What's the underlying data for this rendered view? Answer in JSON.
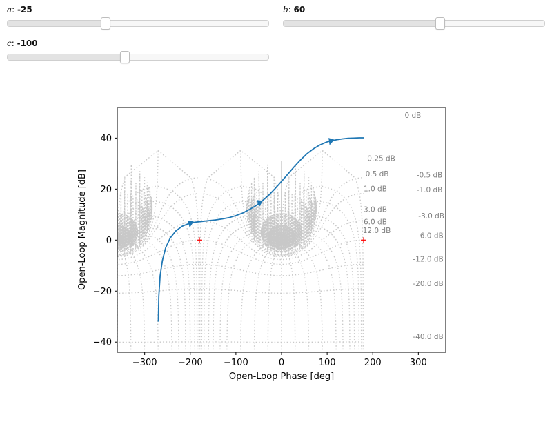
{
  "controls": {
    "sliders": [
      {
        "id": "a",
        "name": "a",
        "value": -25,
        "display": "-25",
        "fraction": 0.375
      },
      {
        "id": "b",
        "name": "b",
        "value": 60,
        "display": "60",
        "fraction": 0.6
      },
      {
        "id": "c",
        "name": "c",
        "value": -100,
        "display": "-100",
        "fraction": 0.45
      }
    ]
  },
  "chart_data": {
    "type": "line",
    "title": "",
    "xlabel": "Open-Loop Phase [deg]",
    "ylabel": "Open-Loop Magnitude [dB]",
    "xlim": [
      -360,
      360
    ],
    "ylim": [
      -44,
      52
    ],
    "xticks": [
      -300,
      -200,
      -100,
      0,
      100,
      200,
      300
    ],
    "xtick_labels": [
      "−300",
      "−200",
      "−100",
      "0",
      "100",
      "200",
      "300"
    ],
    "yticks": [
      -40,
      -20,
      0,
      20,
      40
    ],
    "ytick_labels": [
      "−40",
      "−20",
      "0",
      "20",
      "40"
    ],
    "grid": "nichols",
    "series_color": "#1f77b4",
    "grid_color": "#c8c8c8",
    "marker_color": "#ff0000",
    "series": [
      {
        "name": "",
        "x": [
          -270,
          -269,
          -266,
          -261,
          -254,
          -244,
          -232,
          -218,
          -204,
          -190,
          -175,
          -160,
          -145,
          -130,
          -115,
          -100,
          -85,
          -70,
          -56,
          -42,
          -28,
          -14,
          0,
          14,
          28,
          42,
          56,
          70,
          84,
          98,
          110,
          122,
          134,
          146,
          158,
          170,
          180
        ],
        "y": [
          -32,
          -22,
          -14,
          -8,
          -3,
          0.8,
          3.5,
          5.4,
          6.4,
          7.0,
          7.3,
          7.6,
          7.9,
          8.3,
          8.8,
          9.6,
          10.6,
          12.0,
          13.5,
          15.4,
          17.6,
          20.2,
          23.0,
          25.9,
          28.8,
          31.5,
          33.9,
          35.8,
          37.3,
          38.4,
          39.0,
          39.4,
          39.7,
          39.9,
          40.0,
          40.1,
          40.1
        ]
      }
    ],
    "arrows": [
      {
        "x": -200,
        "y": 6.5,
        "dx": -1,
        "dy": -0.3
      },
      {
        "x": -48,
        "y": 14.6,
        "dx": -1,
        "dy": -0.45
      },
      {
        "x": 108,
        "y": 38.8,
        "dx": -1,
        "dy": -0.15
      }
    ],
    "critical_points": [
      {
        "x": -180,
        "y": 0
      },
      {
        "x": 180,
        "y": 0
      }
    ],
    "grid_labels": [
      {
        "text": "0 dB",
        "x": 270,
        "y": 48
      },
      {
        "text": "0.25 dB",
        "x": 188,
        "y": 31
      },
      {
        "text": "0.5 dB",
        "x": 184,
        "y": 25
      },
      {
        "text": "1.0 dB",
        "x": 180,
        "y": 19.2
      },
      {
        "text": "3.0 dB",
        "x": 180,
        "y": 11
      },
      {
        "text": "6.0 dB",
        "x": 180,
        "y": 6.2
      },
      {
        "text": "12.0 dB",
        "x": 178,
        "y": 2.8
      },
      {
        "text": "-0.5 dB",
        "x": 296,
        "y": 24.5
      },
      {
        "text": "-1.0 dB",
        "x": 296,
        "y": 18.8
      },
      {
        "text": "-3.0 dB",
        "x": 300,
        "y": 8.5
      },
      {
        "text": "-6.0 dB",
        "x": 298,
        "y": 0.8
      },
      {
        "text": "-12.0 dB",
        "x": 288,
        "y": -8.5
      },
      {
        "text": "-20.0 dB",
        "x": 288,
        "y": -18
      },
      {
        "text": "-40.0 dB",
        "x": 288,
        "y": -38.8
      }
    ]
  }
}
